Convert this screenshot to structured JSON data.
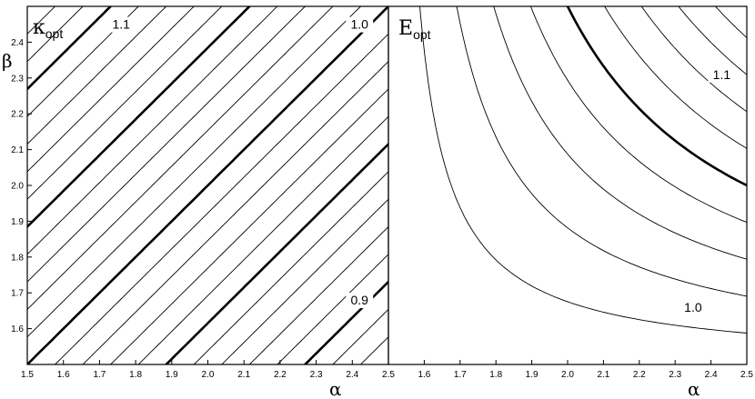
{
  "chart_data": [
    {
      "type": "contour",
      "panel_label": "κ",
      "panel_label_sub": "opt",
      "xlabel": "α",
      "ylabel": "β",
      "xlim": [
        1.5,
        2.5
      ],
      "ylim": [
        1.5,
        2.5
      ],
      "x_ticks": [
        "1.5",
        "1.6",
        "1.7",
        "1.8",
        "1.9",
        "2.0",
        "2.1",
        "2.2",
        "2.3",
        "2.4",
        "2.5"
      ],
      "y_ticks": [
        "1.6",
        "1.7",
        "1.8",
        "1.9",
        "2.0",
        "2.1",
        "2.2",
        "2.3",
        "2.4"
      ],
      "contour_step": 0.01,
      "major_every": 0.05,
      "level_labels": [
        {
          "text": "1.1",
          "alpha": 1.76,
          "beta": 2.44
        },
        {
          "text": "1.0",
          "alpha": 2.42,
          "beta": 2.44
        },
        {
          "text": "0.9",
          "alpha": 2.42,
          "beta": 1.67
        }
      ]
    },
    {
      "type": "contour",
      "panel_label": "E",
      "panel_label_sub": "opt",
      "xlabel": "α",
      "ylabel": "",
      "xlim": [
        1.5,
        2.5
      ],
      "ylim": [
        1.5,
        2.5
      ],
      "x_ticks": [
        "1.6",
        "1.7",
        "1.8",
        "1.9",
        "2.0",
        "2.1",
        "2.2",
        "2.3",
        "2.4",
        "2.5"
      ],
      "y_ticks": [],
      "contour_step": 0.01,
      "major_every": 0.05,
      "level_labels": [
        {
          "text": "1.1",
          "alpha": 2.43,
          "beta": 2.3
        },
        {
          "text": "1.0",
          "alpha": 2.35,
          "beta": 1.65
        }
      ]
    }
  ]
}
